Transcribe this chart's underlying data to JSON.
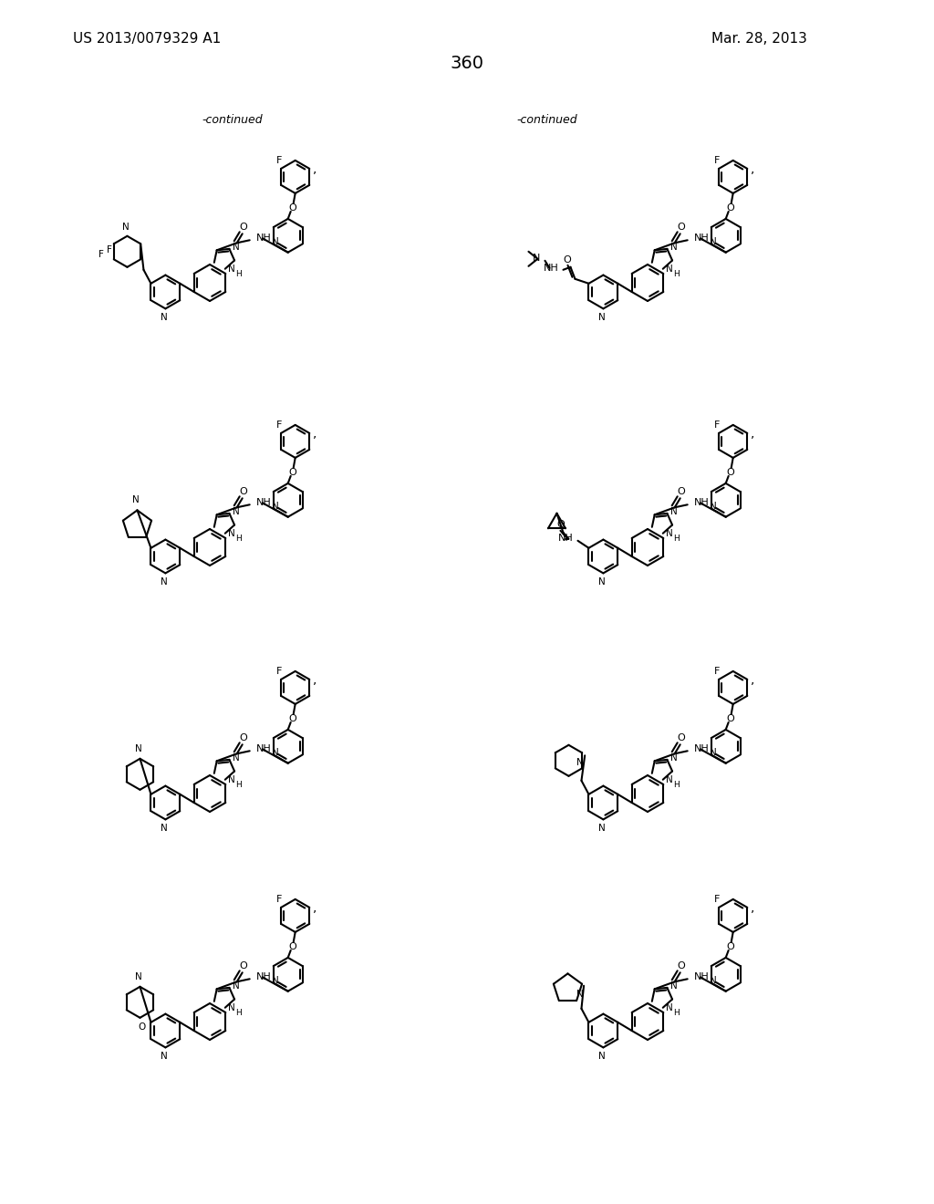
{
  "page_number": "360",
  "patent_number": "US 2013/0079329 A1",
  "patent_date": "Mar. 28, 2013",
  "background_color": "#ffffff",
  "text_color": "#000000",
  "continued_label": "-continued",
  "structures": [
    {
      "id": 1,
      "row": 0,
      "col": 0,
      "substituent": "difluoropiperidine_CH2"
    },
    {
      "id": 2,
      "row": 0,
      "col": 1,
      "substituent": "dimethylurea"
    },
    {
      "id": 3,
      "row": 1,
      "col": 0,
      "substituent": "pyrrolidine"
    },
    {
      "id": 4,
      "row": 1,
      "col": 1,
      "substituent": "cyclopropyl_carboxamide"
    },
    {
      "id": 5,
      "row": 2,
      "col": 0,
      "substituent": "piperidine"
    },
    {
      "id": 6,
      "row": 2,
      "col": 1,
      "substituent": "piperidine_CH2"
    },
    {
      "id": 7,
      "row": 3,
      "col": 0,
      "substituent": "morpholine"
    },
    {
      "id": 8,
      "row": 3,
      "col": 1,
      "substituent": "pyrrolidine_CH2"
    }
  ]
}
